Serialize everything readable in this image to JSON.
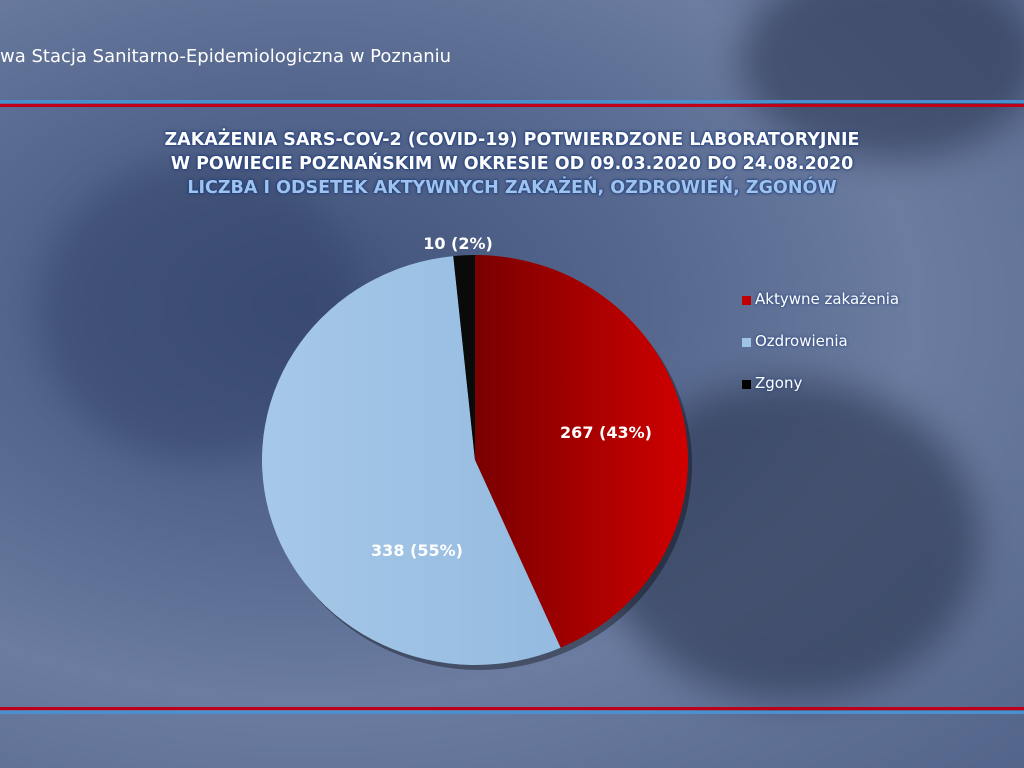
{
  "header": {
    "organization": "wa Stacja Sanitarno-Epidemiologiczna w Poznaniu"
  },
  "colors": {
    "active": "#c00000",
    "recovered": "#9dc3e6",
    "deaths": "#0a0a0a",
    "rule_red": "#c00018",
    "rule_blue": "#4a90d0"
  },
  "chart_data": {
    "type": "pie",
    "title": [
      "ZAKAŻENIA SARS-COV-2 (COVID-19) POTWIERDZONE LABORATORYJNIE",
      "W POWIECIE POZNAŃSKIM W OKRESIE OD 09.03.2020 DO 24.08.2020"
    ],
    "subtitle": "LICZBA I ODSETEK AKTYWNYCH ZAKAŻEŃ, OZDROWIEŃ, ZGONÓW",
    "categories": [
      "Aktywne zakażenia",
      "Ozdrowienia",
      "Zgony"
    ],
    "values": [
      267,
      338,
      10
    ],
    "data_labels": [
      "267 (43%)",
      "338 (55%)",
      "10 (2%)"
    ],
    "legend_position": "right"
  }
}
